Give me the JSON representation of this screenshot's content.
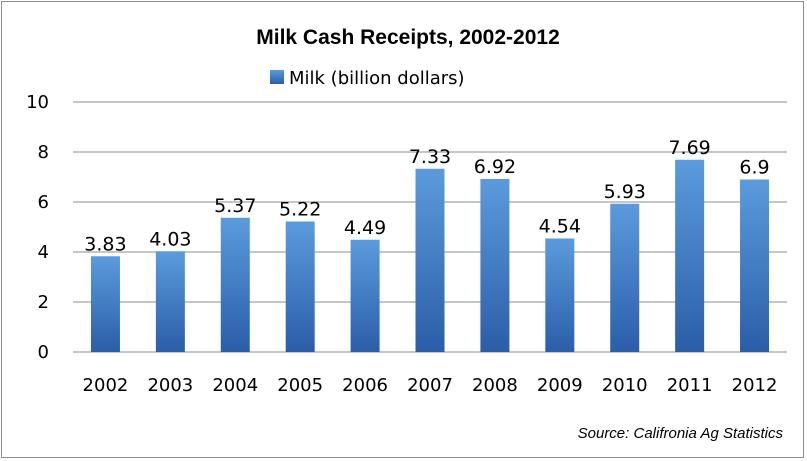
{
  "chart_data": {
    "type": "bar",
    "title": "Milk Cash Receipts, 2002-2012",
    "categories": [
      "2002",
      "2003",
      "2004",
      "2005",
      "2006",
      "2007",
      "2008",
      "2009",
      "2010",
      "2011",
      "2012"
    ],
    "series": [
      {
        "name": "Milk (billion dollars)",
        "values": [
          3.83,
          4.03,
          5.37,
          5.22,
          4.49,
          7.33,
          6.92,
          4.54,
          5.93,
          7.69,
          6.9
        ],
        "data_labels": [
          "3.83",
          "4.03",
          "5.37",
          "5.22",
          "4.49",
          "7.33",
          "6.92",
          "4.54",
          "5.93",
          "7.69",
          "6.9"
        ],
        "color": "#3a76c4"
      }
    ],
    "ylim": [
      0,
      10
    ],
    "yticks": [
      "0",
      "2",
      "4",
      "6",
      "8",
      "10"
    ],
    "grid": true,
    "legend": "top",
    "xlabel": "",
    "ylabel": ""
  },
  "source_note": "Source: Califronia Ag Statistics",
  "colors": {
    "bar_light": "#5b9bdc",
    "bar_dark": "#2a5ea8",
    "grid": "#8c8c8c"
  }
}
